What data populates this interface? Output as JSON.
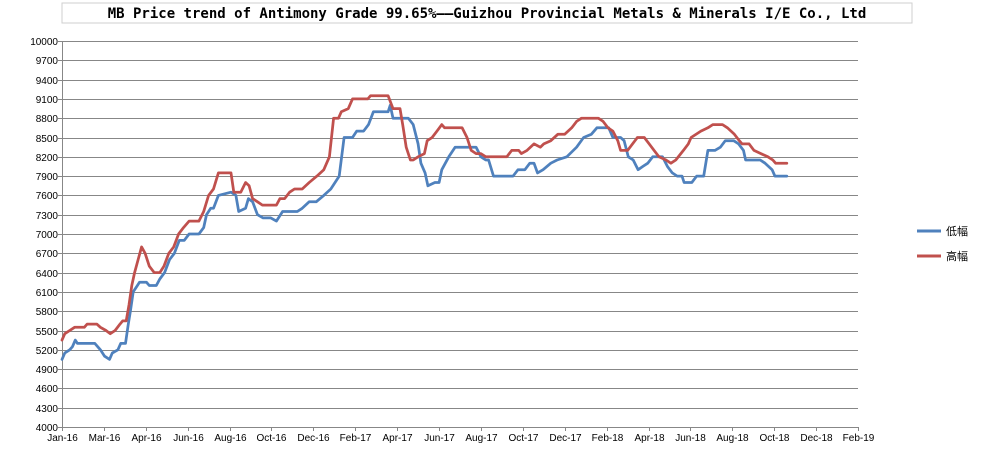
{
  "chart_data": {
    "type": "line",
    "title": "MB Price trend of Antimony Grade 99.65%——Guizhou Provincial Metals & Minerals I/E Co., Ltd",
    "xlabel": "",
    "ylabel": "",
    "ylim": [
      4000,
      10000
    ],
    "yticks": [
      4000,
      4300,
      4600,
      4900,
      5200,
      5500,
      5800,
      6100,
      6400,
      6700,
      7000,
      7300,
      7600,
      7900,
      8200,
      8500,
      8800,
      9100,
      9400,
      9700,
      10000
    ],
    "x_tick_labels": [
      "Jan-16",
      "Mar-16",
      "Apr-16",
      "Jun-16",
      "Aug-16",
      "Oct-16",
      "Dec-16",
      "Feb-17",
      "Apr-17",
      "Jun-17",
      "Aug-17",
      "Oct-17",
      "Dec-17",
      "Feb-18",
      "Apr-18",
      "Jun-18",
      "Aug-18",
      "Oct-18",
      "Dec-18",
      "Feb-19"
    ],
    "x_tick_dates": [
      "2016-01-01",
      "2016-03-01",
      "2016-04-30",
      "2016-06-29",
      "2016-08-28",
      "2016-10-27",
      "2016-12-26",
      "2017-02-24",
      "2017-04-25",
      "2017-06-24",
      "2017-08-23",
      "2017-10-22",
      "2017-12-21",
      "2018-02-19",
      "2018-04-20",
      "2018-06-19",
      "2018-08-18",
      "2018-10-17",
      "2018-12-16",
      "2019-02-14"
    ],
    "grid": true,
    "legend_position": "right",
    "series": [
      {
        "name": "低幅",
        "color": "#4f81bd",
        "points": [
          [
            "2016-01-01",
            5050
          ],
          [
            "2016-01-05",
            5150
          ],
          [
            "2016-01-12",
            5200
          ],
          [
            "2016-01-16",
            5250
          ],
          [
            "2016-01-20",
            5350
          ],
          [
            "2016-01-23",
            5300
          ],
          [
            "2016-02-17",
            5300
          ],
          [
            "2016-02-25",
            5200
          ],
          [
            "2016-03-02",
            5100
          ],
          [
            "2016-03-09",
            5050
          ],
          [
            "2016-03-13",
            5150
          ],
          [
            "2016-03-21",
            5200
          ],
          [
            "2016-03-25",
            5300
          ],
          [
            "2016-04-01",
            5300
          ],
          [
            "2016-04-05",
            5600
          ],
          [
            "2016-04-08",
            5800
          ],
          [
            "2016-04-12",
            6100
          ],
          [
            "2016-04-18",
            6200
          ],
          [
            "2016-04-21",
            6250
          ],
          [
            "2016-05-01",
            6250
          ],
          [
            "2016-05-05",
            6200
          ],
          [
            "2016-05-15",
            6200
          ],
          [
            "2016-05-20",
            6300
          ],
          [
            "2016-05-27",
            6400
          ],
          [
            "2016-06-03",
            6600
          ],
          [
            "2016-06-10",
            6700
          ],
          [
            "2016-06-17",
            6900
          ],
          [
            "2016-06-24",
            6900
          ],
          [
            "2016-07-01",
            7000
          ],
          [
            "2016-07-15",
            7000
          ],
          [
            "2016-07-22",
            7100
          ],
          [
            "2016-07-26",
            7300
          ],
          [
            "2016-08-01",
            7400
          ],
          [
            "2016-08-05",
            7400
          ],
          [
            "2016-08-12",
            7600
          ],
          [
            "2016-08-30",
            7650
          ],
          [
            "2016-09-06",
            7600
          ],
          [
            "2016-09-10",
            7350
          ],
          [
            "2016-09-20",
            7400
          ],
          [
            "2016-09-24",
            7550
          ],
          [
            "2016-09-30",
            7500
          ],
          [
            "2016-10-07",
            7300
          ],
          [
            "2016-10-15",
            7250
          ],
          [
            "2016-10-26",
            7250
          ],
          [
            "2016-11-03",
            7200
          ],
          [
            "2016-11-12",
            7350
          ],
          [
            "2016-12-03",
            7350
          ],
          [
            "2016-12-10",
            7400
          ],
          [
            "2016-12-20",
            7500
          ],
          [
            "2016-12-30",
            7500
          ],
          [
            "2017-01-10",
            7600
          ],
          [
            "2017-01-20",
            7700
          ],
          [
            "2017-02-01",
            7900
          ],
          [
            "2017-02-08",
            8500
          ],
          [
            "2017-02-20",
            8500
          ],
          [
            "2017-02-26",
            8600
          ],
          [
            "2017-03-08",
            8600
          ],
          [
            "2017-03-15",
            8700
          ],
          [
            "2017-03-22",
            8900
          ],
          [
            "2017-04-12",
            8900
          ],
          [
            "2017-04-15",
            9000
          ],
          [
            "2017-04-19",
            8800
          ],
          [
            "2017-05-11",
            8800
          ],
          [
            "2017-05-18",
            8700
          ],
          [
            "2017-05-25",
            8400
          ],
          [
            "2017-05-29",
            8100
          ],
          [
            "2017-06-04",
            7950
          ],
          [
            "2017-06-08",
            7750
          ],
          [
            "2017-06-18",
            7800
          ],
          [
            "2017-06-24",
            7800
          ],
          [
            "2017-06-28",
            8000
          ],
          [
            "2017-07-08",
            8200
          ],
          [
            "2017-07-17",
            8350
          ],
          [
            "2017-08-16",
            8350
          ],
          [
            "2017-08-23",
            8200
          ],
          [
            "2017-08-30",
            8150
          ],
          [
            "2017-09-03",
            8150
          ],
          [
            "2017-09-10",
            7900
          ],
          [
            "2017-10-08",
            7900
          ],
          [
            "2017-10-15",
            8000
          ],
          [
            "2017-10-25",
            8000
          ],
          [
            "2017-11-01",
            8100
          ],
          [
            "2017-11-07",
            8100
          ],
          [
            "2017-11-12",
            7950
          ],
          [
            "2017-11-20",
            8000
          ],
          [
            "2017-12-01",
            8100
          ],
          [
            "2017-12-10",
            8150
          ],
          [
            "2017-12-24",
            8200
          ],
          [
            "2018-01-07",
            8350
          ],
          [
            "2018-01-17",
            8500
          ],
          [
            "2018-01-28",
            8550
          ],
          [
            "2018-02-05",
            8650
          ],
          [
            "2018-02-22",
            8650
          ],
          [
            "2018-02-28",
            8500
          ],
          [
            "2018-03-11",
            8500
          ],
          [
            "2018-03-16",
            8450
          ],
          [
            "2018-03-22",
            8200
          ],
          [
            "2018-03-29",
            8150
          ],
          [
            "2018-04-05",
            8000
          ],
          [
            "2018-04-12",
            8050
          ],
          [
            "2018-04-19",
            8100
          ],
          [
            "2018-04-26",
            8200
          ],
          [
            "2018-05-10",
            8200
          ],
          [
            "2018-05-17",
            8050
          ],
          [
            "2018-05-24",
            7950
          ],
          [
            "2018-05-31",
            7900
          ],
          [
            "2018-06-07",
            7900
          ],
          [
            "2018-06-10",
            7800
          ],
          [
            "2018-06-21",
            7800
          ],
          [
            "2018-06-28",
            7900
          ],
          [
            "2018-07-08",
            7900
          ],
          [
            "2018-07-14",
            8300
          ],
          [
            "2018-07-24",
            8300
          ],
          [
            "2018-08-01",
            8350
          ],
          [
            "2018-08-08",
            8450
          ],
          [
            "2018-08-20",
            8450
          ],
          [
            "2018-08-27",
            8400
          ],
          [
            "2018-09-03",
            8300
          ],
          [
            "2018-09-06",
            8150
          ],
          [
            "2018-09-27",
            8150
          ],
          [
            "2018-10-04",
            8100
          ],
          [
            "2018-10-14",
            8000
          ],
          [
            "2018-10-18",
            7900
          ],
          [
            "2018-11-04",
            7900
          ]
        ]
      },
      {
        "name": "高幅",
        "color": "#c0504d",
        "points": [
          [
            "2016-01-01",
            5350
          ],
          [
            "2016-01-05",
            5450
          ],
          [
            "2016-01-12",
            5500
          ],
          [
            "2016-01-19",
            5550
          ],
          [
            "2016-02-02",
            5550
          ],
          [
            "2016-02-06",
            5600
          ],
          [
            "2016-02-20",
            5600
          ],
          [
            "2016-02-25",
            5550
          ],
          [
            "2016-03-04",
            5500
          ],
          [
            "2016-03-10",
            5450
          ],
          [
            "2016-03-17",
            5500
          ],
          [
            "2016-03-24",
            5600
          ],
          [
            "2016-03-28",
            5650
          ],
          [
            "2016-04-02",
            5650
          ],
          [
            "2016-04-06",
            5900
          ],
          [
            "2016-04-10",
            6200
          ],
          [
            "2016-04-14",
            6400
          ],
          [
            "2016-04-19",
            6600
          ],
          [
            "2016-04-24",
            6800
          ],
          [
            "2016-04-29",
            6700
          ],
          [
            "2016-05-05",
            6500
          ],
          [
            "2016-05-12",
            6400
          ],
          [
            "2016-05-20",
            6400
          ],
          [
            "2016-05-26",
            6500
          ],
          [
            "2016-06-02",
            6700
          ],
          [
            "2016-06-09",
            6800
          ],
          [
            "2016-06-16",
            7000
          ],
          [
            "2016-06-23",
            7100
          ],
          [
            "2016-07-01",
            7200
          ],
          [
            "2016-07-15",
            7200
          ],
          [
            "2016-07-22",
            7350
          ],
          [
            "2016-07-29",
            7600
          ],
          [
            "2016-08-05",
            7700
          ],
          [
            "2016-08-12",
            7950
          ],
          [
            "2016-08-30",
            7950
          ],
          [
            "2016-09-03",
            7650
          ],
          [
            "2016-09-13",
            7650
          ],
          [
            "2016-09-20",
            7800
          ],
          [
            "2016-09-25",
            7750
          ],
          [
            "2016-09-30",
            7550
          ],
          [
            "2016-10-07",
            7500
          ],
          [
            "2016-10-14",
            7450
          ],
          [
            "2016-11-03",
            7450
          ],
          [
            "2016-11-08",
            7550
          ],
          [
            "2016-11-15",
            7550
          ],
          [
            "2016-11-22",
            7650
          ],
          [
            "2016-11-29",
            7700
          ],
          [
            "2016-12-10",
            7700
          ],
          [
            "2016-12-20",
            7800
          ],
          [
            "2016-12-31",
            7900
          ],
          [
            "2017-01-10",
            8000
          ],
          [
            "2017-01-18",
            8200
          ],
          [
            "2017-01-24",
            8800
          ],
          [
            "2017-01-31",
            8800
          ],
          [
            "2017-02-04",
            8900
          ],
          [
            "2017-02-14",
            8950
          ],
          [
            "2017-02-20",
            9100
          ],
          [
            "2017-03-14",
            9100
          ],
          [
            "2017-03-18",
            9150
          ],
          [
            "2017-04-12",
            9150
          ],
          [
            "2017-04-19",
            8950
          ],
          [
            "2017-04-29",
            8950
          ],
          [
            "2017-05-03",
            8700
          ],
          [
            "2017-05-08",
            8350
          ],
          [
            "2017-05-14",
            8150
          ],
          [
            "2017-05-18",
            8150
          ],
          [
            "2017-05-25",
            8200
          ],
          [
            "2017-06-03",
            8250
          ],
          [
            "2017-06-07",
            8450
          ],
          [
            "2017-06-14",
            8500
          ],
          [
            "2017-06-21",
            8600
          ],
          [
            "2017-06-28",
            8700
          ],
          [
            "2017-07-02",
            8650
          ],
          [
            "2017-07-27",
            8650
          ],
          [
            "2017-08-03",
            8500
          ],
          [
            "2017-08-09",
            8300
          ],
          [
            "2017-08-16",
            8250
          ],
          [
            "2017-08-23",
            8250
          ],
          [
            "2017-08-30",
            8200
          ],
          [
            "2017-09-29",
            8200
          ],
          [
            "2017-10-06",
            8300
          ],
          [
            "2017-10-16",
            8300
          ],
          [
            "2017-10-20",
            8250
          ],
          [
            "2017-10-28",
            8300
          ],
          [
            "2017-11-07",
            8400
          ],
          [
            "2017-11-16",
            8350
          ],
          [
            "2017-11-21",
            8400
          ],
          [
            "2017-12-01",
            8450
          ],
          [
            "2017-12-11",
            8550
          ],
          [
            "2017-12-21",
            8550
          ],
          [
            "2017-12-31",
            8650
          ],
          [
            "2018-01-07",
            8750
          ],
          [
            "2018-01-14",
            8800
          ],
          [
            "2018-02-07",
            8800
          ],
          [
            "2018-02-14",
            8750
          ],
          [
            "2018-02-21",
            8650
          ],
          [
            "2018-02-28",
            8600
          ],
          [
            "2018-03-07",
            8450
          ],
          [
            "2018-03-11",
            8300
          ],
          [
            "2018-03-21",
            8300
          ],
          [
            "2018-03-28",
            8400
          ],
          [
            "2018-04-04",
            8500
          ],
          [
            "2018-04-14",
            8500
          ],
          [
            "2018-04-21",
            8400
          ],
          [
            "2018-04-28",
            8300
          ],
          [
            "2018-05-05",
            8200
          ],
          [
            "2018-05-15",
            8150
          ],
          [
            "2018-05-22",
            8100
          ],
          [
            "2018-05-29",
            8150
          ],
          [
            "2018-06-09",
            8300
          ],
          [
            "2018-06-16",
            8400
          ],
          [
            "2018-06-20",
            8500
          ],
          [
            "2018-07-04",
            8600
          ],
          [
            "2018-07-14",
            8650
          ],
          [
            "2018-07-21",
            8700
          ],
          [
            "2018-08-04",
            8700
          ],
          [
            "2018-08-11",
            8650
          ],
          [
            "2018-08-21",
            8550
          ],
          [
            "2018-08-28",
            8450
          ],
          [
            "2018-09-01",
            8400
          ],
          [
            "2018-09-11",
            8400
          ],
          [
            "2018-09-18",
            8300
          ],
          [
            "2018-09-28",
            8250
          ],
          [
            "2018-10-08",
            8200
          ],
          [
            "2018-10-15",
            8150
          ],
          [
            "2018-10-19",
            8100
          ],
          [
            "2018-11-04",
            8100
          ]
        ]
      }
    ]
  }
}
